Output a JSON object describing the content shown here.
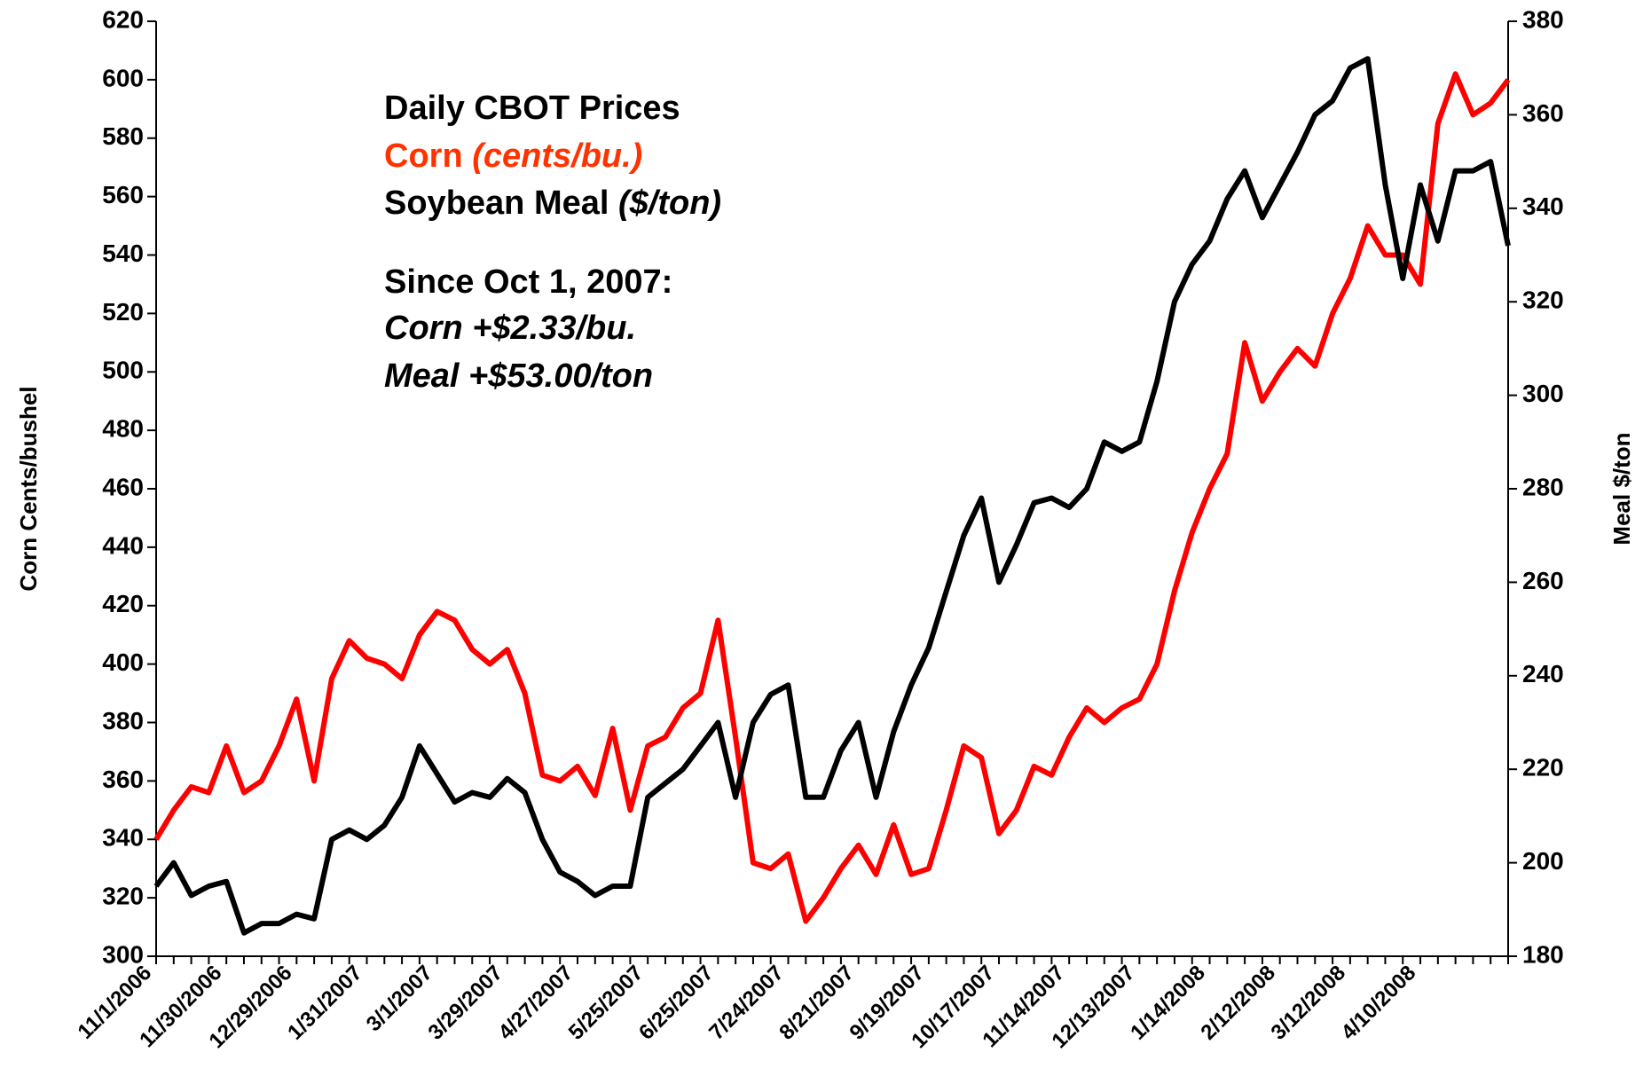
{
  "chart_data": {
    "type": "line",
    "title": "Daily CBOT Prices",
    "ylabel": "Corn Cents/bushel",
    "y2label": "Meal $/ton",
    "categories": [
      "11/1/2006",
      null,
      null,
      null,
      "11/30/2006",
      null,
      null,
      null,
      "12/29/2006",
      null,
      null,
      null,
      "1/31/2007",
      null,
      null,
      null,
      "3/1/2007",
      null,
      null,
      null,
      "3/29/2007",
      null,
      null,
      null,
      "4/27/2007",
      null,
      null,
      null,
      "5/25/2007",
      null,
      null,
      null,
      "6/25/2007",
      null,
      null,
      null,
      "7/24/2007",
      null,
      null,
      null,
      "8/21/2007",
      null,
      null,
      null,
      "9/19/2007",
      null,
      null,
      null,
      "10/17/2007",
      null,
      null,
      null,
      "11/14/2007",
      null,
      null,
      null,
      "12/13/2007",
      null,
      null,
      null,
      "1/14/2008",
      null,
      null,
      null,
      "2/12/2008",
      null,
      null,
      null,
      "3/12/2008",
      null,
      null,
      null,
      "4/10/2008",
      null,
      null,
      null,
      null,
      null
    ],
    "series": [
      {
        "name": "Corn",
        "unit": "(cents/bu.)",
        "color": "#ff0000",
        "text_color": "#ff3300",
        "axis": "y",
        "values": [
          340,
          350,
          358,
          356,
          372,
          356,
          360,
          372,
          388,
          360,
          395,
          408,
          402,
          400,
          395,
          410,
          418,
          415,
          405,
          400,
          405,
          390,
          362,
          360,
          365,
          355,
          378,
          350,
          372,
          375,
          385,
          390,
          415,
          375,
          332,
          330,
          335,
          312,
          320,
          330,
          338,
          328,
          345,
          328,
          330,
          350,
          372,
          368,
          342,
          350,
          365,
          362,
          375,
          385,
          380,
          385,
          388,
          400,
          425,
          445,
          460,
          472,
          510,
          490,
          500,
          508,
          502,
          520,
          532,
          550,
          540,
          540,
          530,
          585,
          602,
          588,
          592,
          600
        ]
      },
      {
        "name": "Soybean Meal",
        "unit": "($/ton)",
        "color": "#000000",
        "text_color": "#000000",
        "axis": "y2",
        "values": [
          195,
          200,
          193,
          195,
          196,
          185,
          187,
          187,
          189,
          188,
          205,
          207,
          205,
          208,
          214,
          225,
          219,
          213,
          215,
          214,
          218,
          215,
          205,
          198,
          196,
          193,
          195,
          195,
          214,
          217,
          220,
          225,
          230,
          214,
          230,
          236,
          238,
          214,
          214,
          224,
          230,
          214,
          228,
          238,
          246,
          258,
          270,
          278,
          260,
          268,
          277,
          278,
          276,
          280,
          290,
          288,
          290,
          303,
          320,
          328,
          333,
          342,
          348,
          338,
          345,
          352,
          360,
          363,
          370,
          372,
          345,
          325,
          345,
          333,
          348,
          348,
          350,
          332
        ]
      }
    ],
    "annotations": [
      "Since Oct 1, 2007:",
      "Corn +$2.33/bu.",
      "Meal +$53.00/ton"
    ],
    "ylim": [
      300,
      620
    ],
    "yticks": [
      300,
      320,
      340,
      360,
      380,
      400,
      420,
      440,
      460,
      480,
      500,
      520,
      540,
      560,
      580,
      600,
      620
    ],
    "y2lim": [
      180,
      380
    ],
    "y2ticks": [
      180,
      200,
      220,
      240,
      260,
      280,
      300,
      320,
      340,
      360,
      380
    ],
    "grid": false
  }
}
